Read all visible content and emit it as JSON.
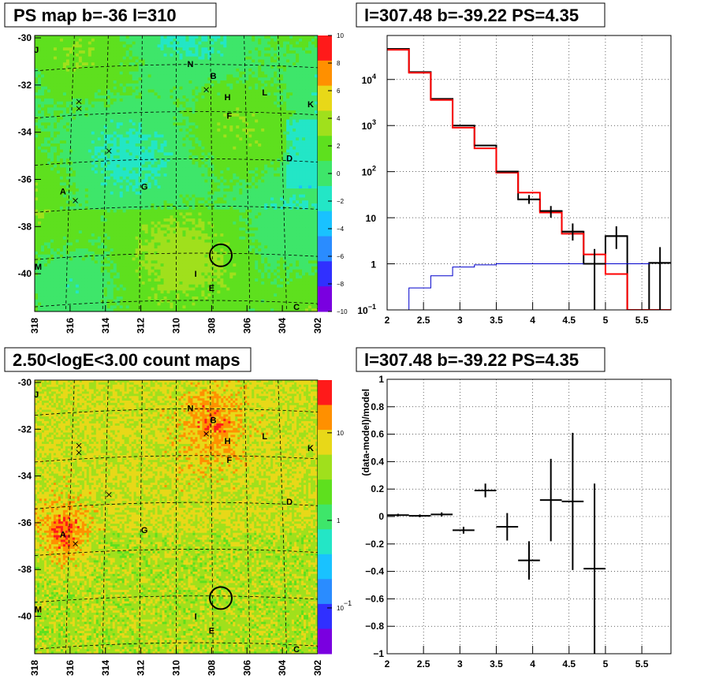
{
  "chart_data": [
    {
      "type": "heatmap",
      "title": "PS map b=-36 l=310",
      "x_ticks": [
        "318",
        "316",
        "314",
        "312",
        "310",
        "308",
        "306",
        "304",
        "302"
      ],
      "y_ticks": [
        "-30",
        "-32",
        "-34",
        "-36",
        "-38",
        "-40"
      ],
      "xlim": [
        318,
        302
      ],
      "ylim": [
        -41.6,
        -29.9
      ],
      "colorbar_ticks": [
        "10",
        "8",
        "6",
        "4",
        "2",
        "0",
        "−2",
        "−4",
        "−6",
        "−8",
        "−10"
      ],
      "zlim": [
        -10,
        10
      ],
      "colors": [
        "#7a00e0",
        "#3030ff",
        "#2a8cff",
        "#19c2ff",
        "#23e6c6",
        "#3ee66a",
        "#5ee01e",
        "#a0e01c",
        "#e8d818",
        "#ff9000",
        "#ff1a1a"
      ],
      "sources": [
        {
          "label": "J",
          "l": 317.9,
          "b": -30.5
        },
        {
          "label": "N",
          "l": 309.2,
          "b": -31.1
        },
        {
          "label": "B",
          "l": 307.9,
          "b": -31.6
        },
        {
          "label": "H",
          "l": 307.1,
          "b": -32.5
        },
        {
          "label": "L",
          "l": 305.0,
          "b": -32.3
        },
        {
          "label": "K",
          "l": 302.4,
          "b": -32.8
        },
        {
          "label": "F",
          "l": 307.0,
          "b": -33.3
        },
        {
          "label": "D",
          "l": 303.6,
          "b": -35.1
        },
        {
          "label": "A",
          "l": 316.4,
          "b": -36.5
        },
        {
          "label": "G",
          "l": 311.8,
          "b": -36.3
        },
        {
          "label": "M",
          "l": 317.8,
          "b": -39.7
        },
        {
          "label": "I",
          "l": 308.9,
          "b": -40.0
        },
        {
          "label": "E",
          "l": 308.0,
          "b": -40.6
        },
        {
          "label": "C",
          "l": 303.2,
          "b": -41.4
        }
      ],
      "crosses": [
        {
          "l": 315.5,
          "b": -32.7
        },
        {
          "l": 315.5,
          "b": -33.0
        },
        {
          "l": 313.8,
          "b": -34.8
        },
        {
          "l": 315.7,
          "b": -36.9
        },
        {
          "l": 308.3,
          "b": -32.2
        },
        {
          "l": 301.9,
          "b": -41.4
        }
      ],
      "ps_circle": {
        "l": 307.48,
        "b": -39.22
      }
    },
    {
      "type": "line",
      "title": "l=307.48 b=-39.22 PS=4.35",
      "xlim": [
        2,
        5.9
      ],
      "ylim": [
        0.1,
        90000
      ],
      "yscale": "log",
      "x_ticks": [
        "2",
        "2.5",
        "3",
        "3.5",
        "4",
        "4.5",
        "5",
        "5.5"
      ],
      "y_ticks": [
        {
          "v": 0.1,
          "label": "10",
          "sup": "−1"
        },
        {
          "v": 1,
          "label": "1",
          "sup": ""
        },
        {
          "v": 10,
          "label": "10",
          "sup": ""
        },
        {
          "v": 100,
          "label": "10",
          "sup": "2"
        },
        {
          "v": 1000,
          "label": "10",
          "sup": "3"
        },
        {
          "v": 10000,
          "label": "10",
          "sup": "4"
        }
      ],
      "grid": true,
      "bin_edges": [
        2.0,
        2.3,
        2.6,
        2.9,
        3.2,
        3.5,
        3.8,
        4.1,
        4.4,
        4.7,
        5.0,
        5.3,
        5.6,
        5.9
      ],
      "series": [
        {
          "color": "#000000",
          "width": 2,
          "values": [
            46000,
            14500,
            3800,
            1000,
            370,
            100,
            25,
            14,
            5,
            1.0,
            4,
            0.1,
            1.05
          ]
        },
        {
          "color": "#ff0000",
          "width": 2,
          "values": [
            44000,
            14000,
            3600,
            900,
            320,
            95,
            35,
            13,
            4.5,
            1.6,
            0.6,
            0.1,
            0.1
          ]
        },
        {
          "color": "#0000cc",
          "width": 1,
          "values": [
            0.1,
            0.3,
            0.55,
            0.85,
            0.95,
            1.0,
            1.0,
            1.0,
            1.0,
            1.0,
            1.0,
            1.0,
            1.05
          ]
        }
      ],
      "errorbars": [
        {
          "x": 3.35,
          "xerr": 0.15,
          "y": 370,
          "ylo": 370,
          "yhi": 370
        },
        {
          "x": 3.65,
          "xerr": 0.15,
          "y": 100,
          "ylo": 100,
          "yhi": 100
        },
        {
          "x": 3.95,
          "xerr": 0.15,
          "y": 25,
          "ylo": 20,
          "yhi": 31
        },
        {
          "x": 4.25,
          "xerr": 0.15,
          "y": 14,
          "ylo": 10,
          "yhi": 18
        },
        {
          "x": 4.55,
          "xerr": 0.15,
          "y": 5,
          "ylo": 3.2,
          "yhi": 7.5
        },
        {
          "x": 4.85,
          "xerr": 0.15,
          "y": 1.0,
          "ylo": 0.1,
          "yhi": 2.1
        },
        {
          "x": 5.15,
          "xerr": 0.15,
          "y": 4,
          "ylo": 2.1,
          "yhi": 6.5
        },
        {
          "x": 5.75,
          "xerr": 0.15,
          "y": 1.05,
          "ylo": 0.1,
          "yhi": 2.3
        }
      ]
    },
    {
      "type": "heatmap",
      "title": "2.50<logE<3.00 count maps",
      "x_ticks": [
        "318",
        "316",
        "314",
        "312",
        "310",
        "308",
        "306",
        "304",
        "302"
      ],
      "y_ticks": [
        "-30",
        "-32",
        "-34",
        "-36",
        "-38",
        "-40"
      ],
      "xlim": [
        318,
        302
      ],
      "ylim": [
        -41.6,
        -29.9
      ],
      "colorbar_ticks": [
        {
          "label": "10",
          "sup": "",
          "v": 10
        },
        {
          "label": "1",
          "sup": "",
          "v": 1
        },
        {
          "label": "10",
          "sup": "−1",
          "v": 0.1
        }
      ],
      "zlim": [
        0.03,
        40
      ],
      "colors": [
        "#7a00e0",
        "#3030ff",
        "#2a8cff",
        "#19c2ff",
        "#23e6c6",
        "#3ee66a",
        "#5ee01e",
        "#a0e01c",
        "#e8d818",
        "#ff9000",
        "#ff1a1a"
      ],
      "hotspots": [
        {
          "l": 316.4,
          "b": -36.5,
          "amp": 1.0,
          "r": 1.2
        },
        {
          "l": 308.0,
          "b": -31.7,
          "amp": 0.7,
          "r": 1.5
        }
      ]
    },
    {
      "type": "scatter",
      "title": "l=307.48 b=-39.22 PS=4.35",
      "ylabel": "(data-model)/model",
      "xlim": [
        2,
        5.9
      ],
      "ylim": [
        -1,
        1
      ],
      "x_ticks": [
        "2",
        "2.5",
        "3",
        "3.5",
        "4",
        "4.5",
        "5",
        "5.5"
      ],
      "y_ticks": [
        "−1",
        "−0.8",
        "−0.6",
        "−0.4",
        "−0.2",
        "0",
        "0.2",
        "0.4",
        "0.6",
        "0.8",
        "1"
      ],
      "grid": true,
      "points": [
        {
          "x": 2.15,
          "xerr": 0.15,
          "y": 0.01,
          "yerr": 0.01
        },
        {
          "x": 2.45,
          "xerr": 0.15,
          "y": 0.005,
          "yerr": 0.01
        },
        {
          "x": 2.75,
          "xerr": 0.15,
          "y": 0.015,
          "yerr": 0.015
        },
        {
          "x": 3.05,
          "xerr": 0.15,
          "y": -0.1,
          "yerr": 0.025
        },
        {
          "x": 3.35,
          "xerr": 0.15,
          "y": 0.19,
          "yerr": 0.05
        },
        {
          "x": 3.65,
          "xerr": 0.15,
          "y": -0.075,
          "yerr": 0.1
        },
        {
          "x": 3.95,
          "xerr": 0.15,
          "y": -0.32,
          "yerr": 0.14
        },
        {
          "x": 4.25,
          "xerr": 0.15,
          "y": 0.12,
          "yerr": 0.3
        },
        {
          "x": 4.55,
          "xerr": 0.15,
          "y": 0.11,
          "yerr": 0.5
        },
        {
          "x": 4.85,
          "xerr": 0.15,
          "y": -0.38,
          "yerr": 0.62
        }
      ]
    }
  ]
}
